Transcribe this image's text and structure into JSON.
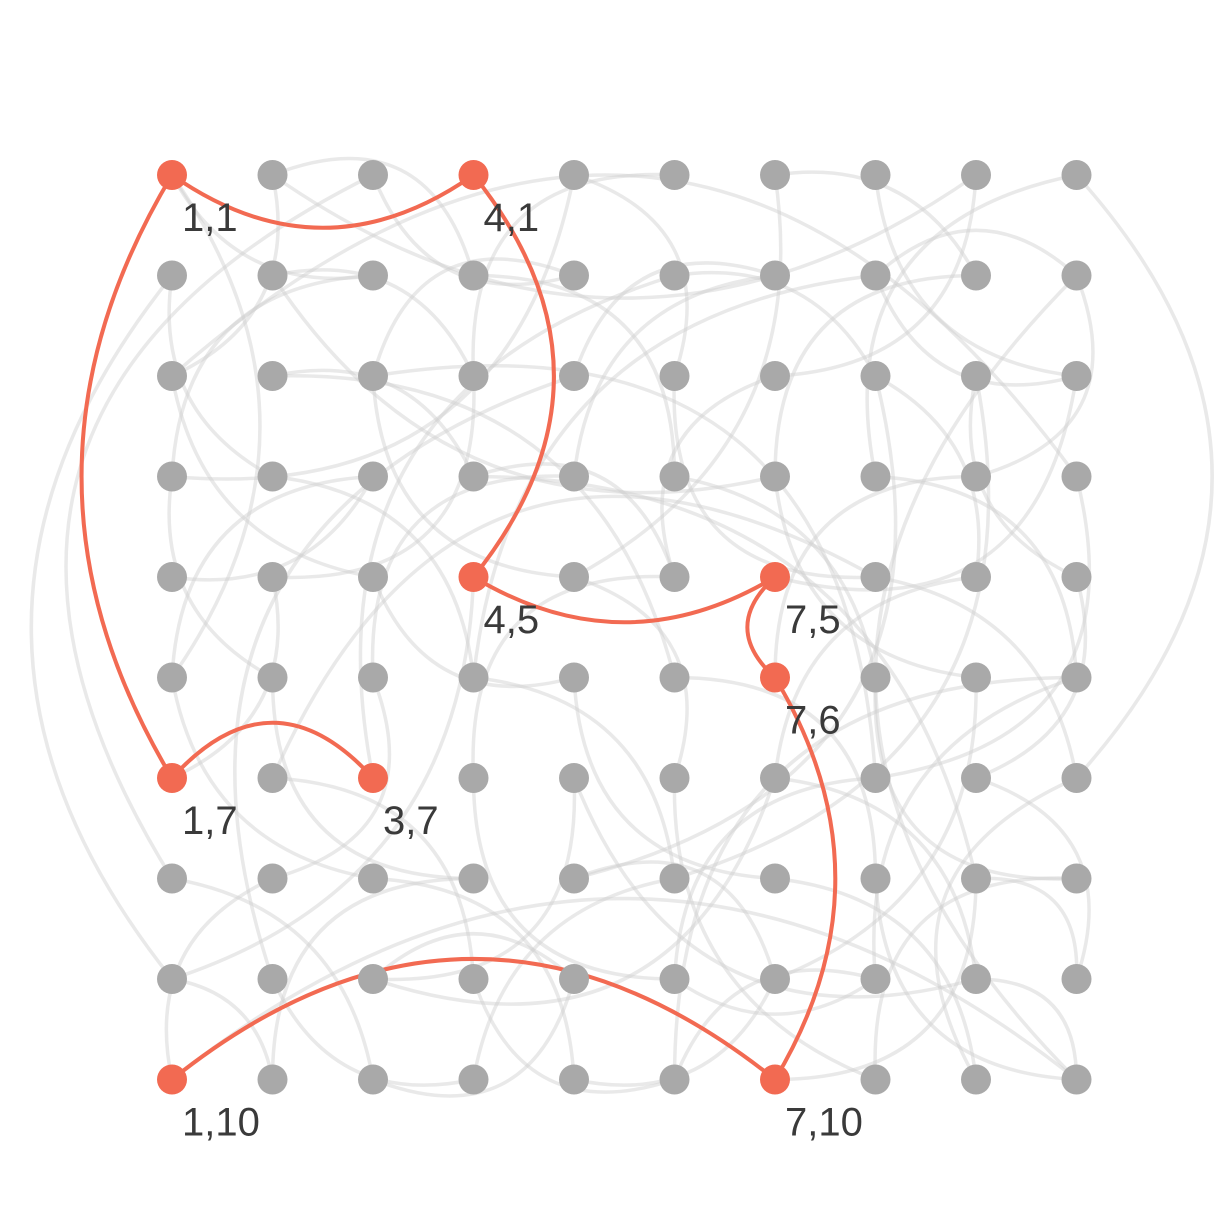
{
  "graph": {
    "grid": {
      "columns": 10,
      "rows": 10
    },
    "colors": {
      "background": "#ffffff",
      "node": "#a9a9a9",
      "highlight": "#f26a52",
      "edge": "#cfcfcf",
      "label": "#3a3a3a"
    },
    "highlighted_nodes": [
      {
        "id": "1,1",
        "col": 1,
        "row": 1,
        "label": "1,1"
      },
      {
        "id": "4,1",
        "col": 4,
        "row": 1,
        "label": "4,1"
      },
      {
        "id": "4,5",
        "col": 4,
        "row": 5,
        "label": "4,5"
      },
      {
        "id": "7,5",
        "col": 7,
        "row": 5,
        "label": "7,5"
      },
      {
        "id": "7,6",
        "col": 7,
        "row": 6,
        "label": "7,6"
      },
      {
        "id": "1,7",
        "col": 1,
        "row": 7,
        "label": "1,7"
      },
      {
        "id": "3,7",
        "col": 3,
        "row": 7,
        "label": "3,7"
      },
      {
        "id": "1,10",
        "col": 1,
        "row": 10,
        "label": "1,10"
      },
      {
        "id": "7,10",
        "col": 7,
        "row": 10,
        "label": "7,10"
      }
    ],
    "highlighted_path": [
      "3,7",
      "1,7",
      "1,1",
      "4,1",
      "4,5",
      "7,5",
      "7,6",
      "7,10",
      "1,10"
    ],
    "background_edges": [
      [
        "1,1",
        "3,2"
      ],
      [
        "2,1",
        "1,3"
      ],
      [
        "3,1",
        "5,2"
      ],
      [
        "5,1",
        "6,3"
      ],
      [
        "6,1",
        "4,3"
      ],
      [
        "7,1",
        "9,2"
      ],
      [
        "8,1",
        "10,3"
      ],
      [
        "9,1",
        "7,3"
      ],
      [
        "10,1",
        "8,4"
      ],
      [
        "2,1",
        "4,2"
      ],
      [
        "1,2",
        "2,4"
      ],
      [
        "2,2",
        "4,3"
      ],
      [
        "3,2",
        "1,4"
      ],
      [
        "4,2",
        "6,4"
      ],
      [
        "5,2",
        "3,3"
      ],
      [
        "6,2",
        "8,3"
      ],
      [
        "7,2",
        "5,4"
      ],
      [
        "8,2",
        "10,2"
      ],
      [
        "9,2",
        "7,4"
      ],
      [
        "10,2",
        "9,4"
      ],
      [
        "1,3",
        "3,5"
      ],
      [
        "2,3",
        "4,4"
      ],
      [
        "3,3",
        "5,5"
      ],
      [
        "5,3",
        "7,2"
      ],
      [
        "6,3",
        "8,5"
      ],
      [
        "8,3",
        "9,5"
      ],
      [
        "9,3",
        "10,5"
      ],
      [
        "10,3",
        "8,2"
      ],
      [
        "7,3",
        "6,5"
      ],
      [
        "4,3",
        "2,5"
      ],
      [
        "1,4",
        "2,6"
      ],
      [
        "2,4",
        "4,6"
      ],
      [
        "3,4",
        "1,6"
      ],
      [
        "4,4",
        "6,5"
      ],
      [
        "5,4",
        "3,6"
      ],
      [
        "6,4",
        "8,6"
      ],
      [
        "7,4",
        "9,6"
      ],
      [
        "8,4",
        "10,6"
      ],
      [
        "9,4",
        "7,6"
      ],
      [
        "10,4",
        "8,7"
      ],
      [
        "1,5",
        "3,4"
      ],
      [
        "2,5",
        "1,7"
      ],
      [
        "3,5",
        "5,6"
      ],
      [
        "5,5",
        "6,7"
      ],
      [
        "6,5",
        "4,7"
      ],
      [
        "8,5",
        "10,7"
      ],
      [
        "9,5",
        "7,7"
      ],
      [
        "10,5",
        "9,7"
      ],
      [
        "2,6",
        "4,8"
      ],
      [
        "3,6",
        "2,8"
      ],
      [
        "1,6",
        "3,8"
      ],
      [
        "4,6",
        "6,8"
      ],
      [
        "5,6",
        "7,8"
      ],
      [
        "6,6",
        "8,8"
      ],
      [
        "8,6",
        "10,8"
      ],
      [
        "9,6",
        "7,9"
      ],
      [
        "10,6",
        "8,9"
      ],
      [
        "2,7",
        "4,9"
      ],
      [
        "4,7",
        "6,9"
      ],
      [
        "5,7",
        "3,9"
      ],
      [
        "6,7",
        "8,10"
      ],
      [
        "7,7",
        "9,9"
      ],
      [
        "8,7",
        "6,9"
      ],
      [
        "9,7",
        "10,9"
      ],
      [
        "10,7",
        "9,10"
      ],
      [
        "1,8",
        "3,10"
      ],
      [
        "2,8",
        "1,10"
      ],
      [
        "3,8",
        "5,10"
      ],
      [
        "4,8",
        "2,10"
      ],
      [
        "5,8",
        "7,9"
      ],
      [
        "6,8",
        "4,10"
      ],
      [
        "7,8",
        "9,10"
      ],
      [
        "8,8",
        "10,10"
      ],
      [
        "9,8",
        "7,10"
      ],
      [
        "10,8",
        "8,10"
      ],
      [
        "1,9",
        "2,10"
      ],
      [
        "2,9",
        "4,10"
      ],
      [
        "3,9",
        "5,9"
      ],
      [
        "4,9",
        "6,10"
      ],
      [
        "5,9",
        "3,10"
      ],
      [
        "6,9",
        "8,9"
      ],
      [
        "7,9",
        "5,10"
      ],
      [
        "8,9",
        "6,10"
      ],
      [
        "9,9",
        "10,10"
      ],
      [
        "10,9",
        "9,8"
      ],
      [
        "1,1",
        "1,6"
      ],
      [
        "1,2",
        "1,9"
      ],
      [
        "10,1",
        "10,7"
      ],
      [
        "10,2",
        "10,10"
      ],
      [
        "1,3",
        "10,4"
      ],
      [
        "2,1",
        "9,1"
      ],
      [
        "1,10",
        "10,10"
      ],
      [
        "1,4",
        "5,1"
      ],
      [
        "6,10",
        "10,6"
      ],
      [
        "3,1",
        "1,8"
      ],
      [
        "7,1",
        "5,5"
      ],
      [
        "8,2",
        "4,6"
      ],
      [
        "9,3",
        "6,8"
      ],
      [
        "5,3",
        "2,9"
      ],
      [
        "3,3",
        "8,7"
      ],
      [
        "2,2",
        "7,4"
      ],
      [
        "4,4",
        "9,8"
      ],
      [
        "6,2",
        "3,7"
      ],
      [
        "8,3",
        "5,8"
      ],
      [
        "7,5",
        "10,3"
      ],
      [
        "4,5",
        "1,9"
      ],
      [
        "6,6",
        "2,3"
      ],
      [
        "9,9",
        "5,7"
      ],
      [
        "3,9",
        "7,7"
      ],
      [
        "2,7",
        "8,5"
      ]
    ]
  }
}
